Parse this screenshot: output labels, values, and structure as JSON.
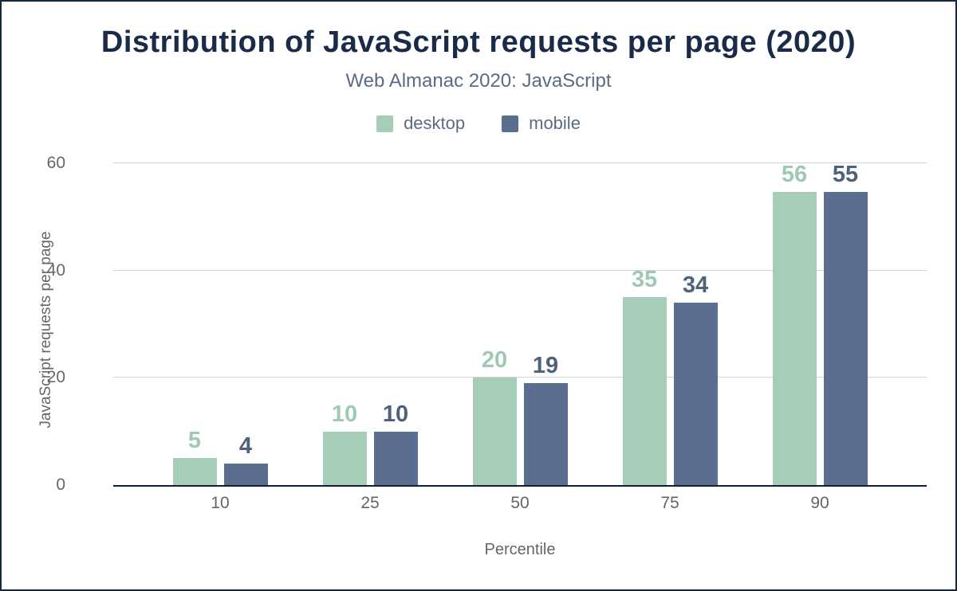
{
  "colors": {
    "title": "#1a2b49",
    "subtitle": "#5c6b85",
    "axis": "#666666",
    "grid": "#cfd4d9",
    "baseline": "#0f1f38",
    "frame": "#17263f"
  },
  "chart_data": {
    "type": "bar",
    "title": "Distribution of JavaScript requests per page (2020)",
    "subtitle": "Web Almanac 2020: JavaScript",
    "categories": [
      "10",
      "25",
      "50",
      "75",
      "90"
    ],
    "series": [
      {
        "name": "desktop",
        "color": "#a5cdb8",
        "label_color": "#a0c9b2",
        "values": [
          5,
          10,
          20,
          35,
          56
        ]
      },
      {
        "name": "mobile",
        "color": "#5b6e8f",
        "label_color": "#4f6279",
        "values": [
          4,
          10,
          19,
          34,
          55
        ]
      }
    ],
    "xlabel": "Percentile",
    "ylabel": "JavaScript requests per page",
    "ylim": [
      0,
      60
    ],
    "yticks": [
      0,
      20,
      40,
      60
    ],
    "grid": true,
    "legend_position": "top"
  }
}
